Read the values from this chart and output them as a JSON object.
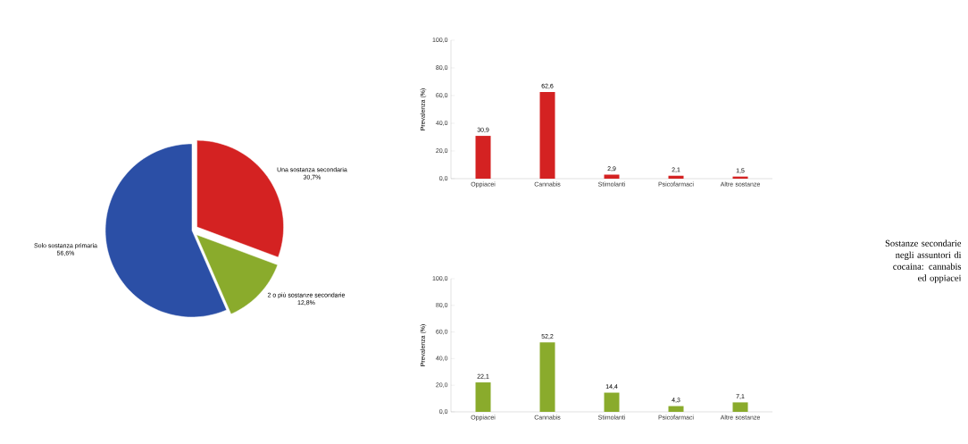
{
  "chart_data": [
    {
      "type": "pie",
      "categories": [
        "Una sostanza secondaria",
        "2 o più sostanze secondarie",
        "Solo sostanza primaria"
      ],
      "values": [
        30.7,
        12.8,
        56.6
      ],
      "value_labels": [
        "30,7%",
        "12,8%",
        "56,6%"
      ],
      "colors": [
        "#d42222",
        "#8aab2c",
        "#2b4fa6"
      ]
    },
    {
      "type": "bar",
      "categories": [
        "Oppiacei",
        "Cannabis",
        "Stimolanti",
        "Psicofarmaci",
        "Altre sostanze"
      ],
      "values": [
        30.9,
        62.6,
        2.9,
        2.1,
        1.5
      ],
      "value_labels": [
        "30,9",
        "62,6",
        "2,9",
        "2,1",
        "1,5"
      ],
      "color": "#d42222",
      "ylabel": "Prevalenza (%)",
      "ylim": [
        0,
        100
      ],
      "yticks": [
        {
          "value": 0,
          "label": "0,0"
        },
        {
          "value": 20,
          "label": "20,0"
        },
        {
          "value": 40,
          "label": "40,0"
        },
        {
          "value": 60,
          "label": "60,0"
        },
        {
          "value": 80,
          "label": "80,0"
        },
        {
          "value": 100,
          "label": "100,0"
        }
      ]
    },
    {
      "type": "bar",
      "categories": [
        "Oppiacei",
        "Cannabis",
        "Stimolanti",
        "Psicofarmaci",
        "Altre sostanze"
      ],
      "values": [
        22.1,
        52.2,
        14.4,
        4.3,
        7.1
      ],
      "value_labels": [
        "22,1",
        "52,2",
        "14,4",
        "4,3",
        "7,1"
      ],
      "color": "#8aab2c",
      "ylabel": "Prevalenza (%)",
      "ylim": [
        0,
        100
      ],
      "yticks": [
        {
          "value": 0,
          "label": "0,0"
        },
        {
          "value": 20,
          "label": "20,0"
        },
        {
          "value": 40,
          "label": "40,0"
        },
        {
          "value": 60,
          "label": "60,0"
        },
        {
          "value": 80,
          "label": "80,0"
        },
        {
          "value": 100,
          "label": "100,0"
        }
      ]
    },
    {
      "type": "other",
      "title": "Sostanze secondarie negli assuntori di cocaina: cannabis ed oppiacei"
    }
  ]
}
